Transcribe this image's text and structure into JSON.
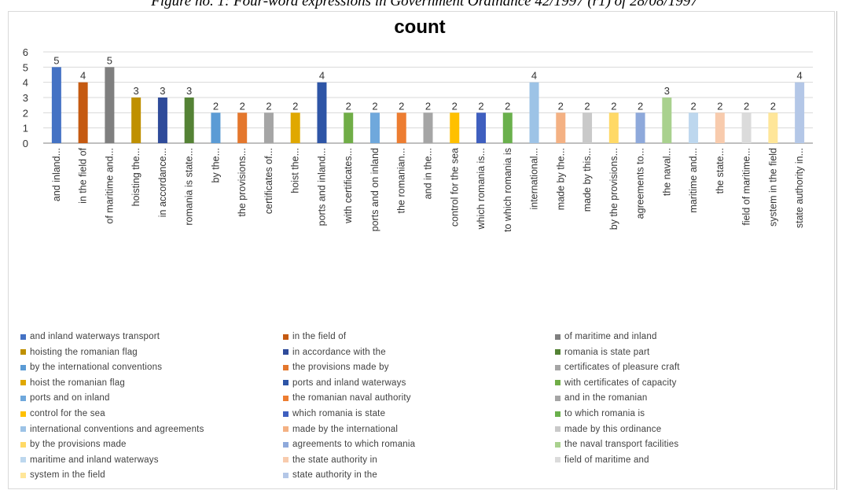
{
  "figure_caption": "Figure no. 1: Four-word expressions in Government Ordinance 42/1997 (r1) of 28/08/1997",
  "chart_data": {
    "type": "bar",
    "title": "count",
    "ylim": [
      0,
      6
    ],
    "yticks": [
      0,
      1,
      2,
      3,
      4,
      5,
      6
    ],
    "grid": true,
    "legend_position": "bottom",
    "categories": [
      "and inland...",
      "in the field of",
      "of maritime and...",
      "hoisting the...",
      "in accordance...",
      "romania is state...",
      "by the...",
      "the provisions...",
      "certificates of...",
      "hoist the...",
      "ports and inland...",
      "with certificates...",
      "ports and on inland",
      "the romanian...",
      "and in the...",
      "control for the sea",
      "which romania is...",
      "to which romania is",
      "international...",
      "made by the...",
      "made by this...",
      "by the provisions...",
      "agreements to...",
      "the naval...",
      "maritime and...",
      "the state...",
      "field of maritime...",
      "system in the field",
      "state authority in..."
    ],
    "values": [
      5,
      4,
      5,
      3,
      3,
      3,
      2,
      2,
      2,
      2,
      4,
      2,
      2,
      2,
      2,
      2,
      2,
      2,
      4,
      2,
      2,
      2,
      2,
      3,
      2,
      2,
      2,
      2,
      4
    ],
    "colors": [
      "#4472C4",
      "#C55A11",
      "#7F7F7F",
      "#BF9000",
      "#2F4B9A",
      "#548235",
      "#5B9BD5",
      "#E4772D",
      "#A5A5A5",
      "#E0A800",
      "#2E55A6",
      "#70AD47",
      "#6FA8DC",
      "#ED7D31",
      "#A5A5A5",
      "#FFC000",
      "#3F5FBF",
      "#6AB04C",
      "#9DC3E6",
      "#F4B183",
      "#C9C9C9",
      "#FFD966",
      "#8EA9DB",
      "#A9D18E",
      "#BDD7EE",
      "#F8CBAD",
      "#DBDBDB",
      "#FFE699",
      "#B4C7E7"
    ],
    "legend": [
      "and inland waterways transport",
      "in the field of",
      "of maritime and inland",
      "hoisting the romanian flag",
      "in accordance with the",
      "romania is state part",
      "by the international conventions",
      "the provisions made by",
      "certificates of pleasure craft",
      "hoist the romanian flag",
      "ports and inland waterways",
      "with certificates of capacity",
      "ports and on inland",
      "the romanian naval authority",
      "and in the romanian",
      "control for the sea",
      "which romania is state",
      "to which romania is",
      "international conventions and agreements",
      "made by the international",
      "made by this ordinance",
      "by the provisions made",
      "agreements to which romania",
      "the naval transport facilities",
      "maritime and inland waterways",
      "the state authority in",
      "field of maritime and",
      "system in the field",
      "state authority in the"
    ]
  }
}
